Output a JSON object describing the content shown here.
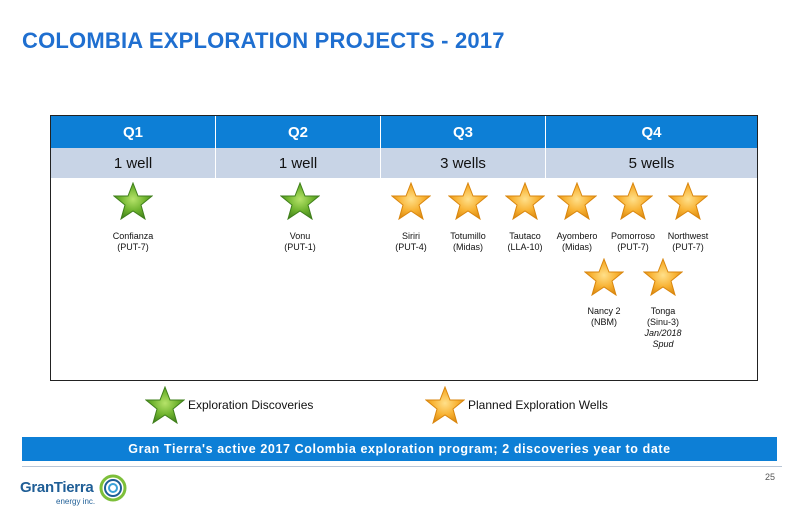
{
  "title": "COLOMBIA EXPLORATION PROJECTS - 2017",
  "quarters": [
    {
      "label": "Q1",
      "wells": "1 well"
    },
    {
      "label": "Q2",
      "wells": "1 well"
    },
    {
      "label": "Q3",
      "wells": "3 wells"
    },
    {
      "label": "Q4",
      "wells": "5 wells"
    }
  ],
  "wells": [
    {
      "name": "Confianza",
      "block": "(PUT-7)",
      "status": "discovery"
    },
    {
      "name": "Vonu",
      "block": "(PUT-1)",
      "status": "discovery"
    },
    {
      "name": "Siriri",
      "block": "(PUT-4)",
      "status": "planned"
    },
    {
      "name": "Totumillo",
      "block": "(Midas)",
      "status": "planned"
    },
    {
      "name": "Tautaco",
      "block": "(LLA-10)",
      "status": "planned"
    },
    {
      "name": "Ayombero",
      "block": "(Midas)",
      "status": "planned"
    },
    {
      "name": "Pomorroso",
      "block": "(PUT-7)",
      "status": "planned"
    },
    {
      "name": "Northwest",
      "block": "(PUT-7)",
      "status": "planned"
    },
    {
      "name": "Nancy 2",
      "block": "(NBM)",
      "status": "planned"
    },
    {
      "name": "Tonga",
      "block": "(Sinu-3)",
      "status": "planned",
      "note1": "Jan/2018",
      "note2": "Spud"
    }
  ],
  "legend": {
    "discovery": "Exploration Discoveries",
    "planned": "Planned Exploration Wells"
  },
  "colors": {
    "discovery_star": "#5aa629",
    "planned_star": "#f5a623",
    "accent": "#0d7fd6",
    "title": "#1f6fd0"
  },
  "banner": "Gran Tierra's active 2017 Colombia exploration program; 2 discoveries year to date",
  "page_number": "25",
  "logo": {
    "name": "GranTierra",
    "sub": "energy inc."
  }
}
